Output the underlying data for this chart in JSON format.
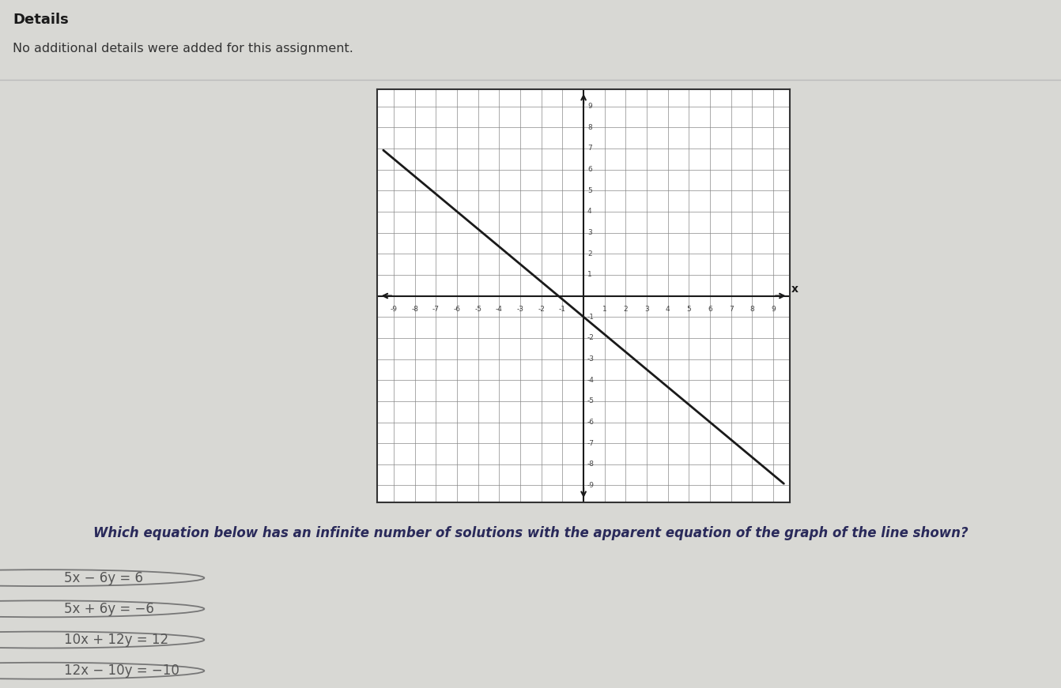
{
  "header_title": "Details",
  "header_subtitle": "No additional details were added for this assignment.",
  "question": "Which equation below has an infinite number of solutions with the apparent equation of the graph of the line shown?",
  "options": [
    "5x − 6y = 6",
    "5x + 6y = −6",
    "10x + 12y = 12",
    "12x − 10y = −10"
  ],
  "graph": {
    "xlim": [
      -9,
      9
    ],
    "ylim": [
      -9,
      9
    ],
    "line_color": "#1a1a1a",
    "line_width": 2.0,
    "grid_color": "#888888",
    "axis_color": "#1a1a1a",
    "graph_bg": "#ffffff"
  },
  "background_color": "#d8d8d4",
  "header_bg": "#efefec",
  "text_color": "#2a2a5a",
  "option_text_color": "#555555"
}
